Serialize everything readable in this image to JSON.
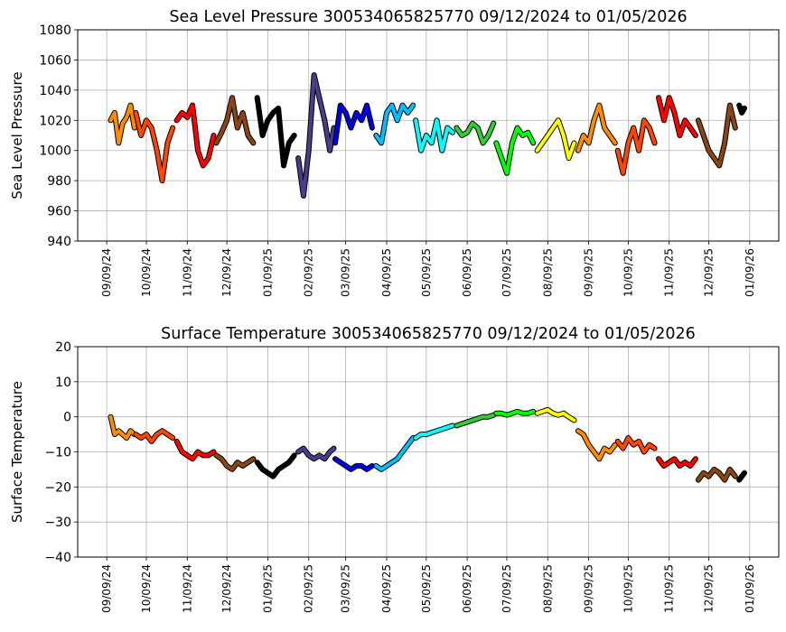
{
  "chart_data": [
    {
      "type": "line",
      "title": "Sea Level Pressure 300534065825770  09/12/2024 to 01/05/2026",
      "y_label": "Sea Level Pressure",
      "xlim": [
        "2024-08-18",
        "2026-01-31"
      ],
      "ylim": [
        940,
        1080
      ],
      "yticks": [
        940,
        960,
        980,
        1000,
        1020,
        1040,
        1060,
        1080
      ],
      "grid": true,
      "xticks": [
        {
          "value": "2024-09-09",
          "label": "09/09/24"
        },
        {
          "value": "2024-10-09",
          "label": "10/09/24"
        },
        {
          "value": "2024-11-09",
          "label": "11/09/24"
        },
        {
          "value": "2024-12-09",
          "label": "12/09/24"
        },
        {
          "value": "2025-01-09",
          "label": "01/09/25"
        },
        {
          "value": "2025-02-09",
          "label": "02/09/25"
        },
        {
          "value": "2025-03-09",
          "label": "03/09/25"
        },
        {
          "value": "2025-04-09",
          "label": "04/09/25"
        },
        {
          "value": "2025-05-09",
          "label": "05/09/25"
        },
        {
          "value": "2025-06-09",
          "label": "06/09/25"
        },
        {
          "value": "2025-07-09",
          "label": "07/09/25"
        },
        {
          "value": "2025-08-09",
          "label": "08/09/25"
        },
        {
          "value": "2025-09-09",
          "label": "09/09/25"
        },
        {
          "value": "2025-10-09",
          "label": "10/09/25"
        },
        {
          "value": "2025-11-09",
          "label": "11/09/25"
        },
        {
          "value": "2025-12-09",
          "label": "12/09/25"
        },
        {
          "value": "2026-01-09",
          "label": "01/09/26"
        }
      ],
      "series": [
        {
          "color": "#ff8c00",
          "x": [
            "2024-09-12",
            "2024-09-15",
            "2024-09-18",
            "2024-09-21",
            "2024-09-24",
            "2024-09-27",
            "2024-09-30"
          ],
          "values": [
            1020,
            1025,
            1005,
            1018,
            1022,
            1030,
            1015
          ]
        },
        {
          "color": "#ff4500",
          "x": [
            "2024-10-01",
            "2024-10-05",
            "2024-10-09",
            "2024-10-13",
            "2024-10-17",
            "2024-10-21",
            "2024-10-25",
            "2024-10-29"
          ],
          "values": [
            1025,
            1010,
            1020,
            1015,
            1000,
            980,
            1005,
            1015
          ]
        },
        {
          "color": "#ff0000",
          "x": [
            "2024-11-01",
            "2024-11-05",
            "2024-11-09",
            "2024-11-13",
            "2024-11-17",
            "2024-11-21",
            "2024-11-25",
            "2024-11-29"
          ],
          "values": [
            1020,
            1025,
            1022,
            1030,
            1000,
            990,
            995,
            1010
          ]
        },
        {
          "color": "#8b4513",
          "x": [
            "2024-12-01",
            "2024-12-05",
            "2024-12-09",
            "2024-12-13",
            "2024-12-17",
            "2024-12-21",
            "2024-12-25",
            "2024-12-29"
          ],
          "values": [
            1005,
            1012,
            1020,
            1035,
            1015,
            1025,
            1010,
            1005
          ]
        },
        {
          "color": "#000000",
          "x": [
            "2025-01-01",
            "2025-01-05",
            "2025-01-09",
            "2025-01-13",
            "2025-01-17",
            "2025-01-21",
            "2025-01-25",
            "2025-01-29"
          ],
          "values": [
            1035,
            1010,
            1020,
            1025,
            1028,
            990,
            1005,
            1010
          ]
        },
        {
          "color": "#483d8b",
          "x": [
            "2025-02-01",
            "2025-02-05",
            "2025-02-09",
            "2025-02-13",
            "2025-02-17",
            "2025-02-21",
            "2025-02-25",
            "2025-02-28"
          ],
          "values": [
            995,
            970,
            1000,
            1050,
            1035,
            1020,
            1000,
            1015
          ]
        },
        {
          "color": "#0000dd",
          "x": [
            "2025-03-01",
            "2025-03-05",
            "2025-03-09",
            "2025-03-13",
            "2025-03-17",
            "2025-03-21",
            "2025-03-25",
            "2025-03-29"
          ],
          "values": [
            1005,
            1030,
            1025,
            1015,
            1025,
            1020,
            1030,
            1015
          ]
        },
        {
          "color": "#00bfff",
          "x": [
            "2025-04-01",
            "2025-04-05",
            "2025-04-09",
            "2025-04-13",
            "2025-04-17",
            "2025-04-21",
            "2025-04-25",
            "2025-04-29"
          ],
          "values": [
            1010,
            1005,
            1025,
            1030,
            1020,
            1030,
            1025,
            1030
          ]
        },
        {
          "color": "#00ffff",
          "x": [
            "2025-05-01",
            "2025-05-05",
            "2025-05-09",
            "2025-05-13",
            "2025-05-17",
            "2025-05-21",
            "2025-05-25",
            "2025-05-29"
          ],
          "values": [
            1020,
            1000,
            1010,
            1005,
            1020,
            1000,
            1015,
            1012
          ]
        },
        {
          "color": "#32cd32",
          "x": [
            "2025-06-01",
            "2025-06-05",
            "2025-06-09",
            "2025-06-13",
            "2025-06-17",
            "2025-06-21",
            "2025-06-25",
            "2025-06-29"
          ],
          "values": [
            1015,
            1010,
            1012,
            1018,
            1015,
            1005,
            1010,
            1018
          ]
        },
        {
          "color": "#00ff00",
          "x": [
            "2025-07-01",
            "2025-07-05",
            "2025-07-09",
            "2025-07-13",
            "2025-07-17",
            "2025-07-21",
            "2025-07-25",
            "2025-07-29"
          ],
          "values": [
            1005,
            995,
            985,
            1005,
            1015,
            1010,
            1012,
            1005
          ]
        },
        {
          "color": "#ffff00",
          "x": [
            "2025-08-01",
            "2025-08-05",
            "2025-08-09",
            "2025-08-13",
            "2025-08-17",
            "2025-08-21",
            "2025-08-25",
            "2025-08-29"
          ],
          "values": [
            1000,
            1005,
            1010,
            1015,
            1020,
            1010,
            995,
            1005
          ]
        },
        {
          "color": "#ff8c00",
          "x": [
            "2025-09-01",
            "2025-09-05",
            "2025-09-09",
            "2025-09-13",
            "2025-09-17",
            "2025-09-21",
            "2025-09-25",
            "2025-09-29"
          ],
          "values": [
            1000,
            1010,
            1005,
            1020,
            1030,
            1015,
            1010,
            1005
          ]
        },
        {
          "color": "#ff4500",
          "x": [
            "2025-10-01",
            "2025-10-05",
            "2025-10-09",
            "2025-10-13",
            "2025-10-17",
            "2025-10-21",
            "2025-10-25",
            "2025-10-29"
          ],
          "values": [
            1000,
            985,
            1005,
            1015,
            1000,
            1020,
            1015,
            1005
          ]
        },
        {
          "color": "#ff0000",
          "x": [
            "2025-11-01",
            "2025-11-05",
            "2025-11-09",
            "2025-11-13",
            "2025-11-17",
            "2025-11-21",
            "2025-11-25",
            "2025-11-29"
          ],
          "values": [
            1035,
            1020,
            1035,
            1025,
            1010,
            1020,
            1015,
            1010
          ]
        },
        {
          "color": "#8b4513",
          "x": [
            "2025-12-01",
            "2025-12-05",
            "2025-12-09",
            "2025-12-13",
            "2025-12-17",
            "2025-12-21",
            "2025-12-25",
            "2025-12-29"
          ],
          "values": [
            1020,
            1010,
            1000,
            995,
            990,
            1005,
            1030,
            1015
          ]
        },
        {
          "color": "#000000",
          "x": [
            "2026-01-01",
            "2026-01-03",
            "2026-01-05"
          ],
          "values": [
            1030,
            1025,
            1028
          ]
        }
      ]
    },
    {
      "type": "line",
      "title": "Surface Temperature 300534065825770  09/12/2024 to 01/05/2026",
      "y_label": "Surface Temperature",
      "xlim": [
        "2024-08-18",
        "2026-01-31"
      ],
      "ylim": [
        -40,
        20
      ],
      "yticks": [
        {
          "value": -40,
          "label": "−40"
        },
        {
          "value": -30,
          "label": "−30"
        },
        {
          "value": -20,
          "label": "−20"
        },
        {
          "value": -10,
          "label": "−10"
        },
        0,
        10,
        20
      ],
      "grid": true,
      "xticks": [
        {
          "value": "2024-09-09",
          "label": "09/09/24"
        },
        {
          "value": "2024-10-09",
          "label": "10/09/24"
        },
        {
          "value": "2024-11-09",
          "label": "11/09/24"
        },
        {
          "value": "2024-12-09",
          "label": "12/09/24"
        },
        {
          "value": "2025-01-09",
          "label": "01/09/25"
        },
        {
          "value": "2025-02-09",
          "label": "02/09/25"
        },
        {
          "value": "2025-03-09",
          "label": "03/09/25"
        },
        {
          "value": "2025-04-09",
          "label": "04/09/25"
        },
        {
          "value": "2025-05-09",
          "label": "05/09/25"
        },
        {
          "value": "2025-06-09",
          "label": "06/09/25"
        },
        {
          "value": "2025-07-09",
          "label": "07/09/25"
        },
        {
          "value": "2025-08-09",
          "label": "08/09/25"
        },
        {
          "value": "2025-09-09",
          "label": "09/09/25"
        },
        {
          "value": "2025-10-09",
          "label": "10/09/25"
        },
        {
          "value": "2025-11-09",
          "label": "11/09/25"
        },
        {
          "value": "2025-12-09",
          "label": "12/09/25"
        },
        {
          "value": "2026-01-09",
          "label": "01/09/26"
        }
      ],
      "series": [
        {
          "color": "#ff8c00",
          "x": [
            "2024-09-12",
            "2024-09-15",
            "2024-09-18",
            "2024-09-21",
            "2024-09-24",
            "2024-09-27",
            "2024-09-30"
          ],
          "values": [
            0,
            -5,
            -4,
            -5,
            -6,
            -4,
            -5
          ]
        },
        {
          "color": "#ff4500",
          "x": [
            "2024-10-01",
            "2024-10-05",
            "2024-10-09",
            "2024-10-13",
            "2024-10-17",
            "2024-10-21",
            "2024-10-25",
            "2024-10-29"
          ],
          "values": [
            -5,
            -6,
            -5,
            -7,
            -5,
            -4,
            -5,
            -6
          ]
        },
        {
          "color": "#ff0000",
          "x": [
            "2024-11-01",
            "2024-11-05",
            "2024-11-09",
            "2024-11-13",
            "2024-11-17",
            "2024-11-21",
            "2024-11-25",
            "2024-11-29"
          ],
          "values": [
            -7,
            -10,
            -11,
            -12,
            -10,
            -11,
            -11,
            -10
          ]
        },
        {
          "color": "#8b4513",
          "x": [
            "2024-12-01",
            "2024-12-05",
            "2024-12-09",
            "2024-12-13",
            "2024-12-17",
            "2024-12-21",
            "2024-12-25",
            "2024-12-29"
          ],
          "values": [
            -11,
            -12,
            -14,
            -15,
            -13,
            -14,
            -13,
            -12
          ]
        },
        {
          "color": "#000000",
          "x": [
            "2025-01-01",
            "2025-01-05",
            "2025-01-09",
            "2025-01-13",
            "2025-01-17",
            "2025-01-21",
            "2025-01-25",
            "2025-01-29"
          ],
          "values": [
            -13,
            -15,
            -16,
            -17,
            -15,
            -14,
            -13,
            -11
          ]
        },
        {
          "color": "#483d8b",
          "x": [
            "2025-02-01",
            "2025-02-05",
            "2025-02-09",
            "2025-02-13",
            "2025-02-17",
            "2025-02-21",
            "2025-02-25",
            "2025-02-28"
          ],
          "values": [
            -10,
            -9,
            -11,
            -12,
            -11,
            -12,
            -10,
            -9
          ]
        },
        {
          "color": "#0000dd",
          "x": [
            "2025-03-01",
            "2025-03-05",
            "2025-03-09",
            "2025-03-13",
            "2025-03-17",
            "2025-03-21",
            "2025-03-25",
            "2025-03-29"
          ],
          "values": [
            -12,
            -13,
            -14,
            -15,
            -14,
            -14,
            -15,
            -14
          ]
        },
        {
          "color": "#00bfff",
          "x": [
            "2025-04-01",
            "2025-04-05",
            "2025-04-09",
            "2025-04-13",
            "2025-04-17",
            "2025-04-21",
            "2025-04-25",
            "2025-04-29"
          ],
          "values": [
            -14,
            -15,
            -14,
            -13,
            -12,
            -10,
            -8,
            -6
          ]
        },
        {
          "color": "#00ffff",
          "x": [
            "2025-05-01",
            "2025-05-05",
            "2025-05-09",
            "2025-05-13",
            "2025-05-17",
            "2025-05-21",
            "2025-05-25",
            "2025-05-29"
          ],
          "values": [
            -6,
            -5,
            -5,
            -4.5,
            -4,
            -3.5,
            -3,
            -2.5
          ]
        },
        {
          "color": "#32cd32",
          "x": [
            "2025-06-01",
            "2025-06-05",
            "2025-06-09",
            "2025-06-13",
            "2025-06-17",
            "2025-06-21",
            "2025-06-25",
            "2025-06-29"
          ],
          "values": [
            -2.5,
            -2,
            -1.5,
            -1,
            -0.5,
            0,
            0,
            0.5
          ]
        },
        {
          "color": "#00ff00",
          "x": [
            "2025-07-01",
            "2025-07-05",
            "2025-07-09",
            "2025-07-13",
            "2025-07-17",
            "2025-07-21",
            "2025-07-25",
            "2025-07-29"
          ],
          "values": [
            1,
            1,
            0.5,
            1,
            1.5,
            1,
            1,
            1.5
          ]
        },
        {
          "color": "#ffff00",
          "x": [
            "2025-08-01",
            "2025-08-05",
            "2025-08-09",
            "2025-08-13",
            "2025-08-17",
            "2025-08-21",
            "2025-08-25",
            "2025-08-29"
          ],
          "values": [
            1,
            1.5,
            2,
            1,
            0.5,
            1,
            0,
            -1
          ]
        },
        {
          "color": "#ff8c00",
          "x": [
            "2025-09-01",
            "2025-09-05",
            "2025-09-09",
            "2025-09-13",
            "2025-09-17",
            "2025-09-21",
            "2025-09-25",
            "2025-09-29"
          ],
          "values": [
            -4,
            -5,
            -8,
            -10,
            -12,
            -9,
            -10,
            -8
          ]
        },
        {
          "color": "#ff4500",
          "x": [
            "2025-10-01",
            "2025-10-05",
            "2025-10-09",
            "2025-10-13",
            "2025-10-17",
            "2025-10-21",
            "2025-10-25",
            "2025-10-29"
          ],
          "values": [
            -7,
            -9,
            -6,
            -8,
            -7,
            -10,
            -8,
            -9
          ]
        },
        {
          "color": "#ff0000",
          "x": [
            "2025-11-01",
            "2025-11-05",
            "2025-11-09",
            "2025-11-13",
            "2025-11-17",
            "2025-11-21",
            "2025-11-25",
            "2025-11-29"
          ],
          "values": [
            -12,
            -14,
            -13,
            -12,
            -14,
            -13,
            -14,
            -12
          ]
        },
        {
          "color": "#8b4513",
          "x": [
            "2025-12-01",
            "2025-12-05",
            "2025-12-09",
            "2025-12-13",
            "2025-12-17",
            "2025-12-21",
            "2025-12-25",
            "2025-12-29"
          ],
          "values": [
            -18,
            -16,
            -17,
            -15,
            -16,
            -18,
            -15,
            -17
          ]
        },
        {
          "color": "#000000",
          "x": [
            "2026-01-01",
            "2026-01-03",
            "2026-01-05"
          ],
          "values": [
            -18,
            -17,
            -16
          ]
        }
      ]
    }
  ]
}
